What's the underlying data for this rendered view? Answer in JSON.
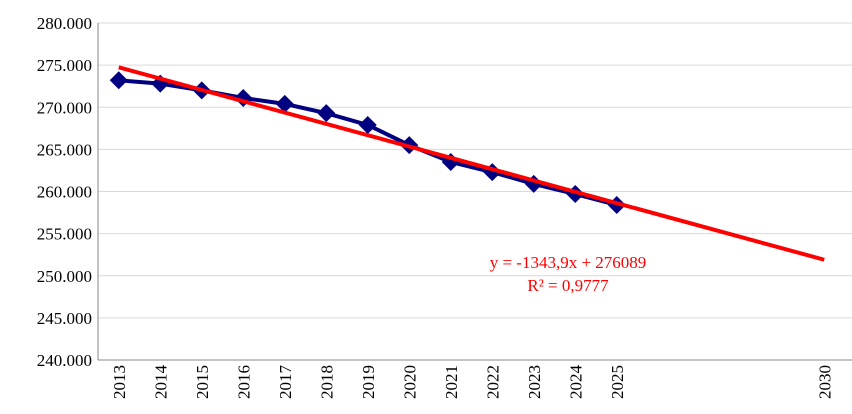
{
  "chart_data": {
    "type": "line",
    "categories": [
      "2013",
      "2014",
      "2015",
      "2016",
      "2017",
      "2018",
      "2019",
      "2020",
      "2021",
      "2022",
      "2023",
      "2024",
      "2025",
      null,
      null,
      null,
      null,
      "2030"
    ],
    "series": [
      {
        "name": null,
        "color": "#000080",
        "values": [
          273200,
          272800,
          272000,
          271100,
          270400,
          269300,
          267900,
          265500,
          263500,
          262300,
          260900,
          259700,
          258400,
          null,
          null,
          null,
          null,
          null
        ]
      }
    ],
    "trendline": {
      "slope": -1343.9,
      "intercept": 276089,
      "color": "#ff0000",
      "equation": "y = -1343,9x + 276089",
      "r_squared": "R² = 0,9777"
    },
    "ylim": [
      240000,
      280000
    ],
    "yticks": [
      {
        "value": 240000,
        "label": "240.000"
      },
      {
        "value": 245000,
        "label": "245.000"
      },
      {
        "value": 250000,
        "label": "250.000"
      },
      {
        "value": 255000,
        "label": "255.000"
      },
      {
        "value": 260000,
        "label": "260.000"
      },
      {
        "value": 265000,
        "label": "265.000"
      },
      {
        "value": 270000,
        "label": "270.000"
      },
      {
        "value": 275000,
        "label": "275.000"
      },
      {
        "value": 280000,
        "label": "280.000"
      }
    ],
    "grid": true
  }
}
